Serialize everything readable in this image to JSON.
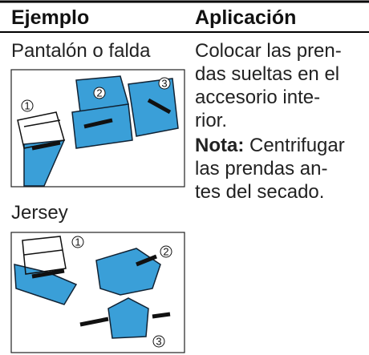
{
  "table": {
    "header": [
      "Ejemplo",
      "Aplicación"
    ],
    "examples": [
      {
        "label": "Pantalón o falda",
        "steps": [
          "1",
          "2",
          "3"
        ]
      },
      {
        "label": "Jersey",
        "steps": [
          "1",
          "2",
          "3"
        ]
      }
    ],
    "application": {
      "lines": [
        "Colocar las pren-",
        "das sueltas en el",
        "accesorio inte-",
        "rior."
      ],
      "note_label": "Nota:",
      "note_lines": [
        "Centrifugar",
        "las prendas an-",
        "tes del secado."
      ]
    }
  }
}
